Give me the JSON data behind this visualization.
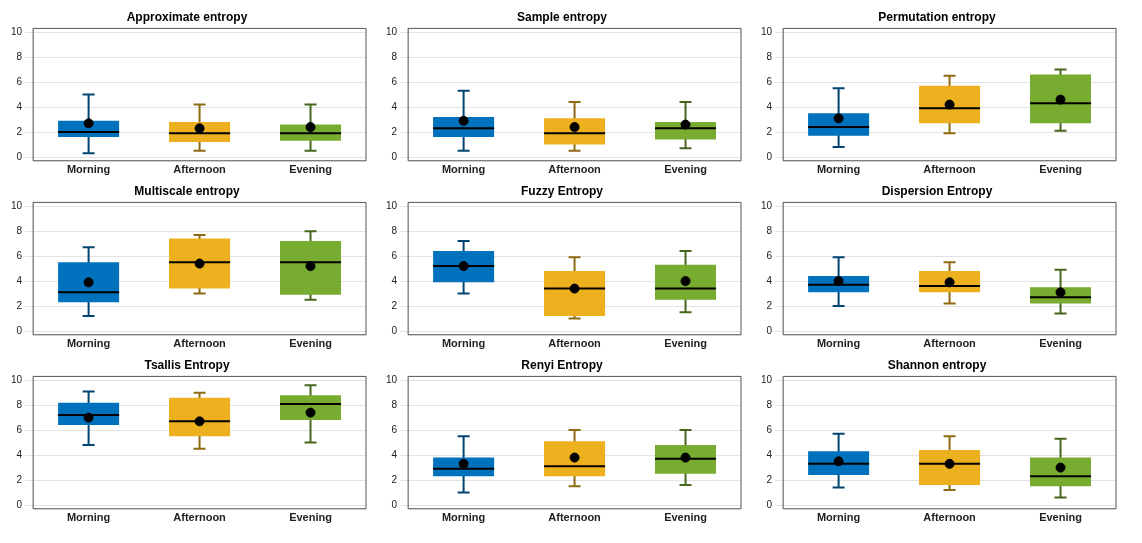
{
  "chart_data": [
    {
      "type": "box",
      "title": "Approximate entropy",
      "categories": [
        "Morning",
        "Afternoon",
        "Evening"
      ],
      "colors": [
        "#0072bd",
        "#edb120",
        "#77ac30"
      ],
      "ylim": [
        -0.3,
        10.3
      ],
      "yticks": [
        0,
        2,
        4,
        6,
        8,
        10
      ],
      "grid": "y",
      "boxes": [
        {
          "low": 0.3,
          "q1": 1.6,
          "median": 2.0,
          "q3": 2.9,
          "high": 5.0,
          "mean": 2.7
        },
        {
          "low": 0.5,
          "q1": 1.2,
          "median": 1.9,
          "q3": 2.8,
          "high": 4.2,
          "mean": 2.3
        },
        {
          "low": 0.5,
          "q1": 1.3,
          "median": 1.9,
          "q3": 2.6,
          "high": 4.2,
          "mean": 2.4
        }
      ]
    },
    {
      "type": "box",
      "title": "Sample entropy",
      "categories": [
        "Morning",
        "Afternoon",
        "Evening"
      ],
      "colors": [
        "#0072bd",
        "#edb120",
        "#77ac30"
      ],
      "ylim": [
        -0.3,
        10.3
      ],
      "yticks": [
        0,
        2,
        4,
        6,
        8,
        10
      ],
      "grid": "y",
      "boxes": [
        {
          "low": 0.5,
          "q1": 1.6,
          "median": 2.3,
          "q3": 3.2,
          "high": 5.3,
          "mean": 2.9
        },
        {
          "low": 0.5,
          "q1": 1.0,
          "median": 1.9,
          "q3": 3.1,
          "high": 4.4,
          "mean": 2.4
        },
        {
          "low": 0.7,
          "q1": 1.4,
          "median": 2.3,
          "q3": 2.8,
          "high": 4.4,
          "mean": 2.6
        }
      ]
    },
    {
      "type": "box",
      "title": "Permutation entropy",
      "categories": [
        "Morning",
        "Afternoon",
        "Evening"
      ],
      "colors": [
        "#0072bd",
        "#edb120",
        "#77ac30"
      ],
      "ylim": [
        -0.3,
        10.3
      ],
      "yticks": [
        0,
        2,
        4,
        6,
        8,
        10
      ],
      "grid": "y",
      "boxes": [
        {
          "low": 0.8,
          "q1": 1.7,
          "median": 2.4,
          "q3": 3.5,
          "high": 5.5,
          "mean": 3.1
        },
        {
          "low": 1.9,
          "q1": 2.7,
          "median": 3.9,
          "q3": 5.7,
          "high": 6.5,
          "mean": 4.2
        },
        {
          "low": 2.1,
          "q1": 2.7,
          "median": 4.3,
          "q3": 6.6,
          "high": 7.0,
          "mean": 4.6
        }
      ]
    },
    {
      "type": "box",
      "title": "Multiscale entropy",
      "categories": [
        "Morning",
        "Afternoon",
        "Evening"
      ],
      "colors": [
        "#0072bd",
        "#edb120",
        "#77ac30"
      ],
      "ylim": [
        -0.3,
        10.3
      ],
      "yticks": [
        0,
        2,
        4,
        6,
        8,
        10
      ],
      "grid": "y",
      "boxes": [
        {
          "low": 1.2,
          "q1": 2.3,
          "median": 3.1,
          "q3": 5.5,
          "high": 6.7,
          "mean": 3.9
        },
        {
          "low": 3.0,
          "q1": 3.4,
          "median": 5.5,
          "q3": 7.4,
          "high": 7.7,
          "mean": 5.4
        },
        {
          "low": 2.5,
          "q1": 2.9,
          "median": 5.5,
          "q3": 7.2,
          "high": 8.0,
          "mean": 5.2
        }
      ]
    },
    {
      "type": "box",
      "title": "Fuzzy Entropy",
      "categories": [
        "Morning",
        "Afternoon",
        "Evening"
      ],
      "colors": [
        "#0072bd",
        "#edb120",
        "#77ac30"
      ],
      "ylim": [
        -0.3,
        10.3
      ],
      "yticks": [
        0,
        2,
        4,
        6,
        8,
        10
      ],
      "grid": "y",
      "boxes": [
        {
          "low": 3.0,
          "q1": 3.9,
          "median": 5.2,
          "q3": 6.4,
          "high": 7.2,
          "mean": 5.2
        },
        {
          "low": 1.0,
          "q1": 1.2,
          "median": 3.4,
          "q3": 4.8,
          "high": 5.9,
          "mean": 3.4
        },
        {
          "low": 1.5,
          "q1": 2.5,
          "median": 3.4,
          "q3": 5.3,
          "high": 6.4,
          "mean": 4.0
        }
      ]
    },
    {
      "type": "box",
      "title": "Dispersion Entropy",
      "categories": [
        "Morning",
        "Afternoon",
        "Evening"
      ],
      "colors": [
        "#0072bd",
        "#edb120",
        "#77ac30"
      ],
      "ylim": [
        -0.3,
        10.3
      ],
      "yticks": [
        0,
        2,
        4,
        6,
        8,
        10
      ],
      "grid": "y",
      "boxes": [
        {
          "low": 2.0,
          "q1": 3.1,
          "median": 3.7,
          "q3": 4.4,
          "high": 5.9,
          "mean": 4.0
        },
        {
          "low": 2.2,
          "q1": 3.1,
          "median": 3.6,
          "q3": 4.8,
          "high": 5.5,
          "mean": 3.9
        },
        {
          "low": 1.4,
          "q1": 2.2,
          "median": 2.7,
          "q3": 3.5,
          "high": 4.9,
          "mean": 3.1
        }
      ]
    },
    {
      "type": "box",
      "title": "Tsallis Entropy",
      "categories": [
        "Morning",
        "Afternoon",
        "Evening"
      ],
      "colors": [
        "#0072bd",
        "#edb120",
        "#77ac30"
      ],
      "ylim": [
        -0.3,
        10.3
      ],
      "yticks": [
        0,
        2,
        4,
        6,
        8,
        10
      ],
      "grid": "y",
      "boxes": [
        {
          "low": 4.8,
          "q1": 6.4,
          "median": 7.2,
          "q3": 8.2,
          "high": 9.1,
          "mean": 7.0
        },
        {
          "low": 4.5,
          "q1": 5.5,
          "median": 6.7,
          "q3": 8.6,
          "high": 9.0,
          "mean": 6.7
        },
        {
          "low": 5.0,
          "q1": 6.8,
          "median": 8.1,
          "q3": 8.8,
          "high": 9.6,
          "mean": 7.4
        }
      ]
    },
    {
      "type": "box",
      "title": "Renyi Entropy",
      "categories": [
        "Morning",
        "Afternoon",
        "Evening"
      ],
      "colors": [
        "#0072bd",
        "#edb120",
        "#77ac30"
      ],
      "ylim": [
        -0.3,
        10.3
      ],
      "yticks": [
        0,
        2,
        4,
        6,
        8,
        10
      ],
      "grid": "y",
      "boxes": [
        {
          "low": 1.0,
          "q1": 2.3,
          "median": 2.9,
          "q3": 3.8,
          "high": 5.5,
          "mean": 3.3
        },
        {
          "low": 1.5,
          "q1": 2.3,
          "median": 3.1,
          "q3": 5.1,
          "high": 6.0,
          "mean": 3.8
        },
        {
          "low": 1.6,
          "q1": 2.5,
          "median": 3.7,
          "q3": 4.8,
          "high": 6.0,
          "mean": 3.8
        }
      ]
    },
    {
      "type": "box",
      "title": "Shannon entropy",
      "categories": [
        "Morning",
        "Afternoon",
        "Evening"
      ],
      "colors": [
        "#0072bd",
        "#edb120",
        "#77ac30"
      ],
      "ylim": [
        -0.3,
        10.3
      ],
      "yticks": [
        0,
        2,
        4,
        6,
        8,
        10
      ],
      "grid": "y",
      "boxes": [
        {
          "low": 1.4,
          "q1": 2.4,
          "median": 3.3,
          "q3": 4.3,
          "high": 5.7,
          "mean": 3.5
        },
        {
          "low": 1.2,
          "q1": 1.6,
          "median": 3.3,
          "q3": 4.4,
          "high": 5.5,
          "mean": 3.3
        },
        {
          "low": 0.6,
          "q1": 1.5,
          "median": 2.3,
          "q3": 3.8,
          "high": 5.3,
          "mean": 3.0
        }
      ]
    }
  ]
}
